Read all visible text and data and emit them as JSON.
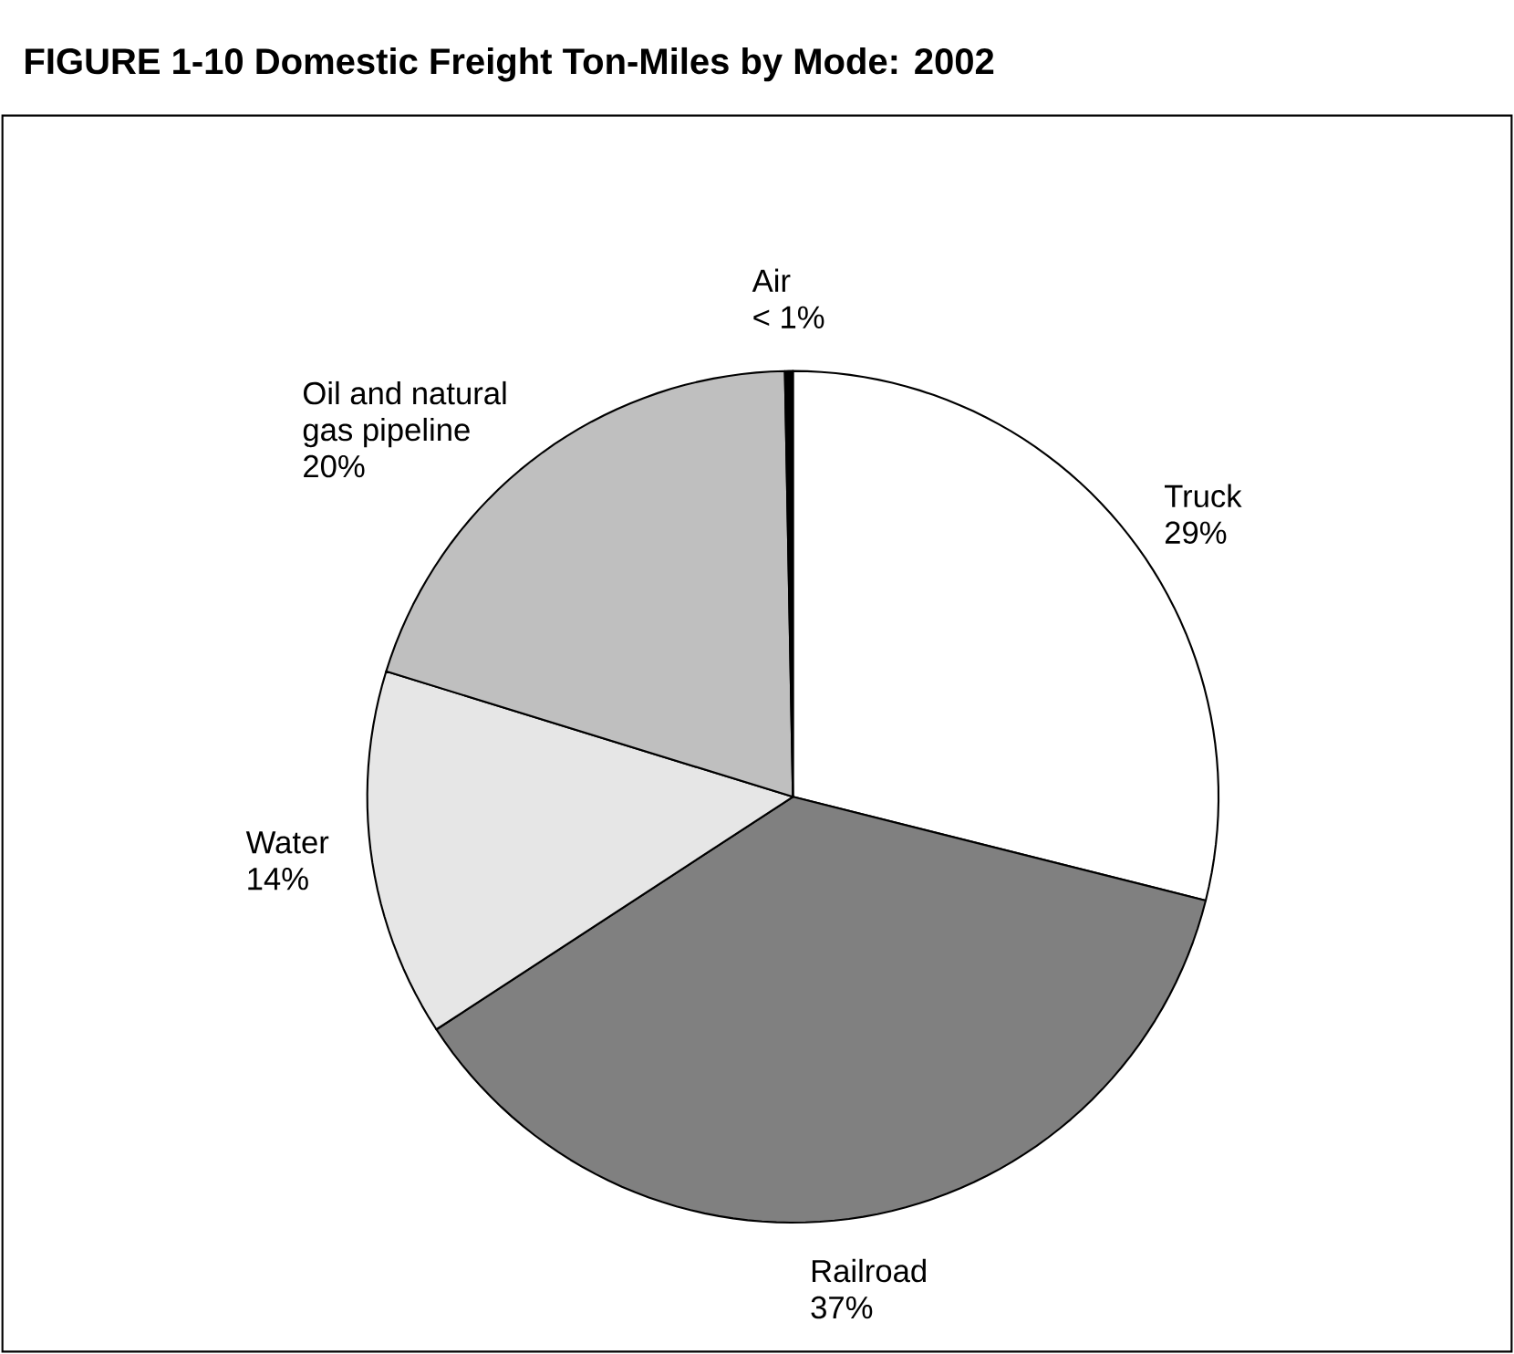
{
  "chart_data": {
    "type": "pie",
    "title": "FIGURE 1-10  Domestic Freight Ton-Miles by Mode: 2002",
    "categories": [
      "Truck",
      "Railroad",
      "Water",
      "Oil and natural gas pipeline",
      "Air"
    ],
    "values": [
      29,
      37,
      14,
      20,
      0.3
    ],
    "value_labels": [
      "29%",
      "37%",
      "14%",
      "20%",
      "< 1%"
    ],
    "colors": [
      "#ffffff",
      "#808080",
      "#e6e6e6",
      "#bfbfbf",
      "#000000"
    ]
  }
}
